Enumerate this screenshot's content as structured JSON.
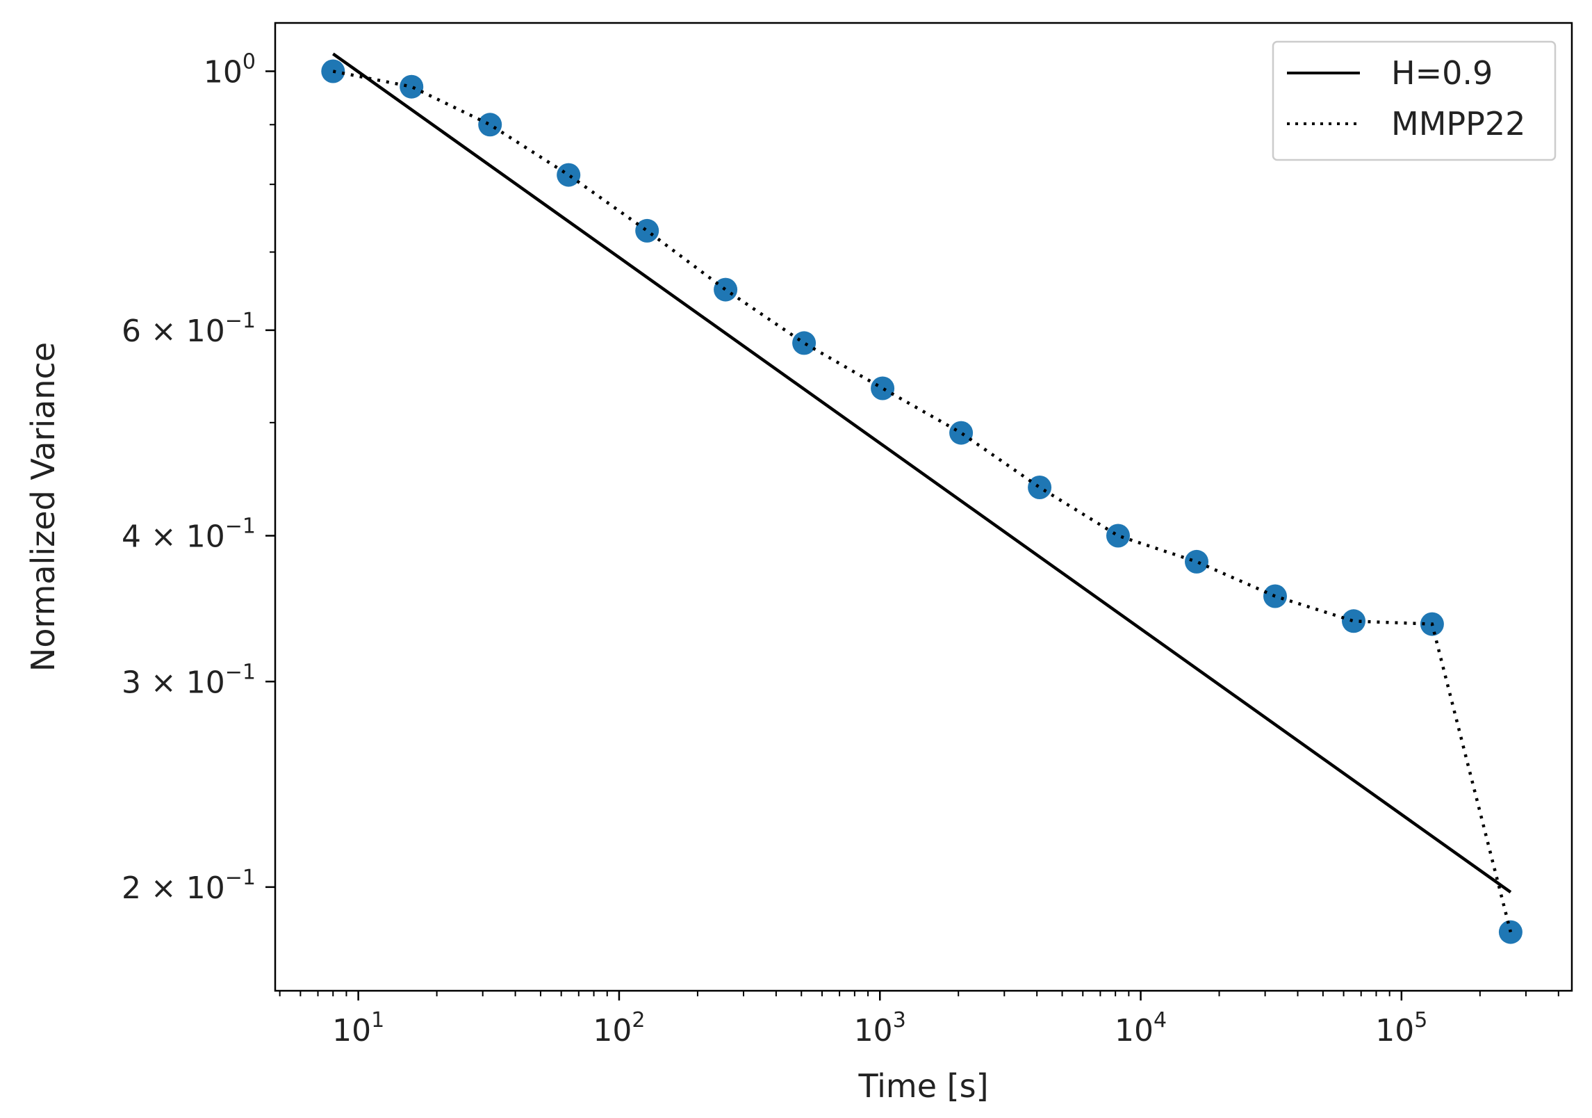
{
  "chart_data": {
    "type": "scatter",
    "xlabel": "Time [s]",
    "ylabel": "Normalized Variance",
    "xscale": "log",
    "yscale": "log",
    "xlim": [
      4.8,
      450000
    ],
    "ylim": [
      0.163,
      1.1
    ],
    "grid": false,
    "legend_position": "top-right",
    "x_ticks": [
      {
        "value": 10,
        "base": "10",
        "exp": "1"
      },
      {
        "value": 100,
        "base": "10",
        "exp": "2"
      },
      {
        "value": 1000,
        "base": "10",
        "exp": "3"
      },
      {
        "value": 10000,
        "base": "10",
        "exp": "4"
      },
      {
        "value": 100000,
        "base": "10",
        "exp": "5"
      }
    ],
    "y_ticks": [
      {
        "value": 1.0,
        "mant": "",
        "base": "10",
        "exp": "0"
      },
      {
        "value": 0.6,
        "mant": "6 × ",
        "base": "10",
        "exp": "−1"
      },
      {
        "value": 0.4,
        "mant": "4 × ",
        "base": "10",
        "exp": "−1"
      },
      {
        "value": 0.3,
        "mant": "3 × ",
        "base": "10",
        "exp": "−1"
      },
      {
        "value": 0.2,
        "mant": "2 × ",
        "base": "10",
        "exp": "−1"
      }
    ],
    "y_minor_ticks": [
      0.7,
      0.8,
      0.9,
      0.5
    ],
    "points": {
      "color": "#1f77b4",
      "x": [
        8,
        16,
        32,
        64,
        128,
        256,
        512,
        1024,
        2048,
        4096,
        8192,
        16384,
        32768,
        65536,
        131072,
        262144
      ],
      "y": [
        1.0,
        0.97,
        0.9,
        0.815,
        0.73,
        0.65,
        0.585,
        0.535,
        0.49,
        0.44,
        0.4,
        0.38,
        0.355,
        0.338,
        0.336,
        0.183
      ]
    },
    "series": [
      {
        "name": "H=0.9",
        "style": "solid",
        "color": "#000000",
        "x": [
          8,
          262144
        ],
        "y": [
          1.035,
          0.198
        ]
      },
      {
        "name": "MMPP22",
        "style": "dotted",
        "color": "#000000",
        "x": [
          8,
          16,
          32,
          64,
          128,
          256,
          512,
          1024,
          2048,
          4096,
          8192,
          16384,
          32768,
          65536,
          131072,
          262144
        ],
        "y": [
          1.0,
          0.97,
          0.9,
          0.815,
          0.73,
          0.65,
          0.585,
          0.535,
          0.49,
          0.44,
          0.4,
          0.38,
          0.355,
          0.338,
          0.336,
          0.183
        ]
      }
    ]
  }
}
